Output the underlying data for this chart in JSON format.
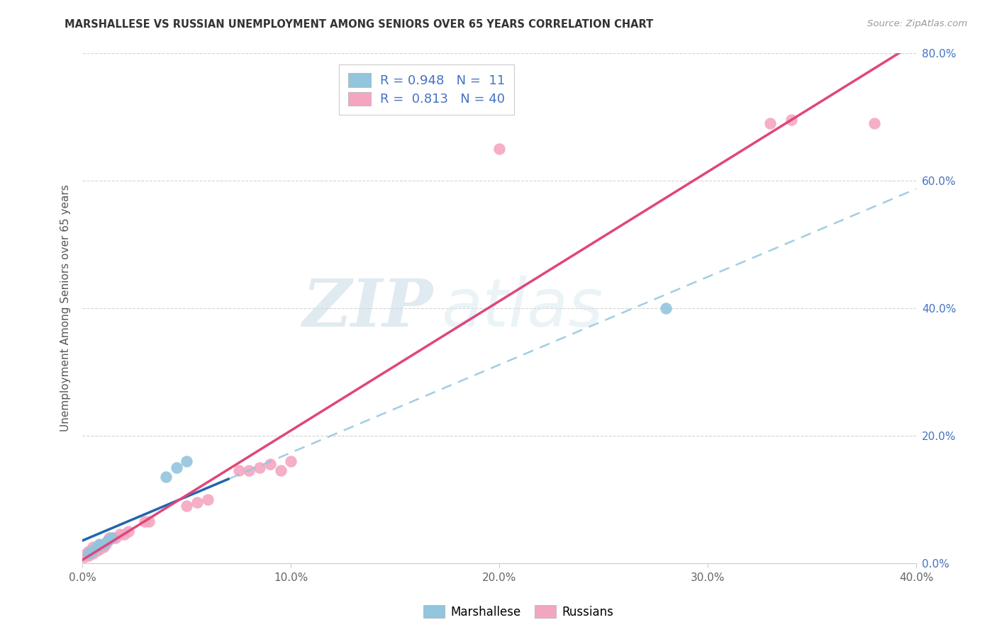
{
  "title": "MARSHALLESE VS RUSSIAN UNEMPLOYMENT AMONG SENIORS OVER 65 YEARS CORRELATION CHART",
  "source": "Source: ZipAtlas.com",
  "xlim": [
    0.0,
    0.4
  ],
  "ylim": [
    0.0,
    0.8
  ],
  "ylabel": "Unemployment Among Seniors over 65 years",
  "watermark_zip": "ZIP",
  "watermark_atlas": "atlas",
  "legend_label_marshallese": "Marshallese",
  "legend_label_russians": "Russians",
  "marshallese_R": "0.948",
  "marshallese_N": "11",
  "russians_R": "0.813",
  "russians_N": "40",
  "marshallese_color": "#92c5de",
  "russians_color": "#f4a6c0",
  "marshallese_line_color": "#2166ac",
  "russians_line_color": "#e0457b",
  "dashed_line_color": "#92c5de",
  "marshallese_x": [
    0.003,
    0.005,
    0.007,
    0.008,
    0.01,
    0.012,
    0.014,
    0.04,
    0.045,
    0.05,
    0.28
  ],
  "marshallese_y": [
    0.015,
    0.02,
    0.025,
    0.03,
    0.03,
    0.035,
    0.04,
    0.135,
    0.15,
    0.16,
    0.4
  ],
  "russians_x": [
    0.001,
    0.002,
    0.003,
    0.003,
    0.004,
    0.004,
    0.005,
    0.005,
    0.006,
    0.006,
    0.007,
    0.007,
    0.008,
    0.008,
    0.009,
    0.01,
    0.01,
    0.011,
    0.012,
    0.013,
    0.015,
    0.016,
    0.018,
    0.02,
    0.022,
    0.03,
    0.032,
    0.05,
    0.055,
    0.06,
    0.075,
    0.08,
    0.085,
    0.09,
    0.095,
    0.1,
    0.2,
    0.33,
    0.34,
    0.38
  ],
  "russians_y": [
    0.01,
    0.015,
    0.012,
    0.018,
    0.015,
    0.02,
    0.015,
    0.025,
    0.02,
    0.022,
    0.02,
    0.025,
    0.022,
    0.028,
    0.025,
    0.025,
    0.03,
    0.03,
    0.035,
    0.04,
    0.04,
    0.04,
    0.045,
    0.045,
    0.05,
    0.065,
    0.065,
    0.09,
    0.095,
    0.1,
    0.145,
    0.145,
    0.15,
    0.155,
    0.145,
    0.16,
    0.65,
    0.69,
    0.695,
    0.69
  ],
  "background_color": "#ffffff",
  "grid_color": "#d0d0d0"
}
